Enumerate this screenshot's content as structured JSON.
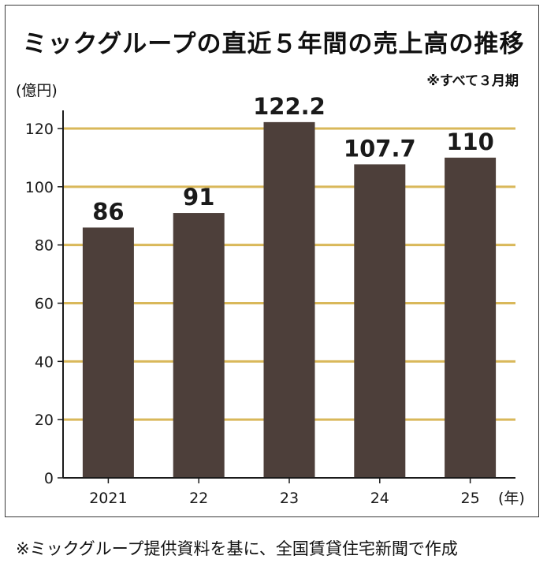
{
  "chart_data": {
    "type": "bar",
    "title": "ミックグループの直近５年間の売上高の推移",
    "subtitle": "※すべて３月期",
    "ylabel": "(億円)",
    "xlabel": "(年)",
    "categories": [
      "2021",
      "22",
      "23",
      "24",
      "25"
    ],
    "values": [
      86,
      91,
      122.2,
      107.7,
      110
    ],
    "value_labels": [
      "86",
      "91",
      "122.2",
      "107.7",
      "110"
    ],
    "yticks": [
      0,
      20,
      40,
      60,
      80,
      100,
      120
    ],
    "ylim": [
      0,
      120
    ],
    "grid": true,
    "colors": {
      "bar": "#4d3f3a",
      "grid": "#d9b85a",
      "axis": "#1a1a1a"
    }
  },
  "source_note": "※ミックグループ提供資料を基に、全国賃貸住宅新聞で作成"
}
